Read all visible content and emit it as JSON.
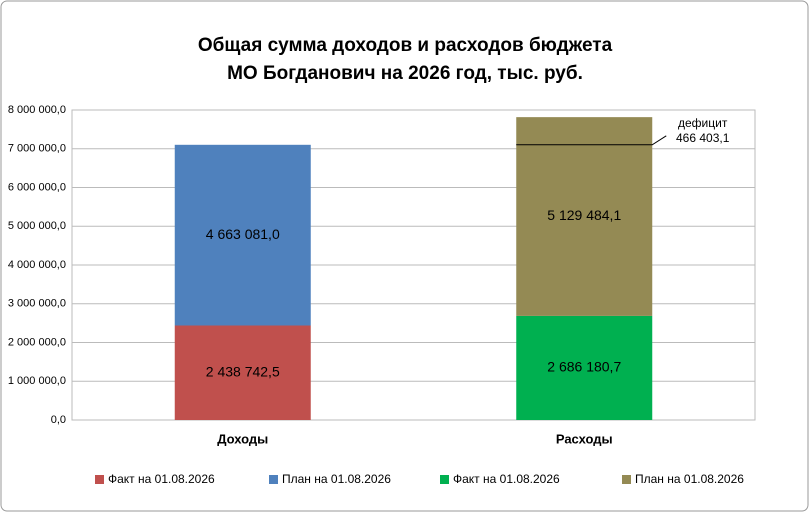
{
  "chart_data": {
    "type": "stacked-bar",
    "title": [
      "Общая сумма доходов и расходов бюджета",
      "МО Богданович на 2026 год, тыс. руб."
    ],
    "categories": [
      "Доходы",
      "Расходы"
    ],
    "series": [
      {
        "name": "Факт на 01.08.2026",
        "color": "#c0504d",
        "values": [
          2438742.5,
          null
        ],
        "value_labels": [
          "2 438 742,5",
          null
        ]
      },
      {
        "name": "План на 01.08.2026",
        "color": "#4f81bd",
        "values": [
          4663081.0,
          null
        ],
        "value_labels": [
          "4 663 081,0",
          null
        ]
      },
      {
        "name": "Факт на 01.08.2026",
        "color": "#00b050",
        "values": [
          null,
          2686180.7
        ],
        "value_labels": [
          null,
          "2 686 180,7"
        ]
      },
      {
        "name": "План на 01.08.2026",
        "color": "#948a54",
        "values": [
          null,
          5129484.1
        ],
        "value_labels": [
          null,
          "5 129 484,1"
        ]
      }
    ],
    "ylim": [
      0,
      8000000
    ],
    "yticks": [
      {
        "value": 0,
        "label": "0,0"
      },
      {
        "value": 1000000,
        "label": "1 000 000,0"
      },
      {
        "value": 2000000,
        "label": "2 000 000,0"
      },
      {
        "value": 3000000,
        "label": "3 000 000,0"
      },
      {
        "value": 4000000,
        "label": "4 000 000,0"
      },
      {
        "value": 5000000,
        "label": "5 000 000,0"
      },
      {
        "value": 6000000,
        "label": "6 000 000,0"
      },
      {
        "value": 7000000,
        "label": "7 000 000,0"
      },
      {
        "value": 8000000,
        "label": "8 000 000,0"
      }
    ],
    "grid": true,
    "annotation": {
      "text": "дефицит",
      "value": 466403.1,
      "value_label": "466 403,1"
    },
    "legend": "bottom"
  }
}
